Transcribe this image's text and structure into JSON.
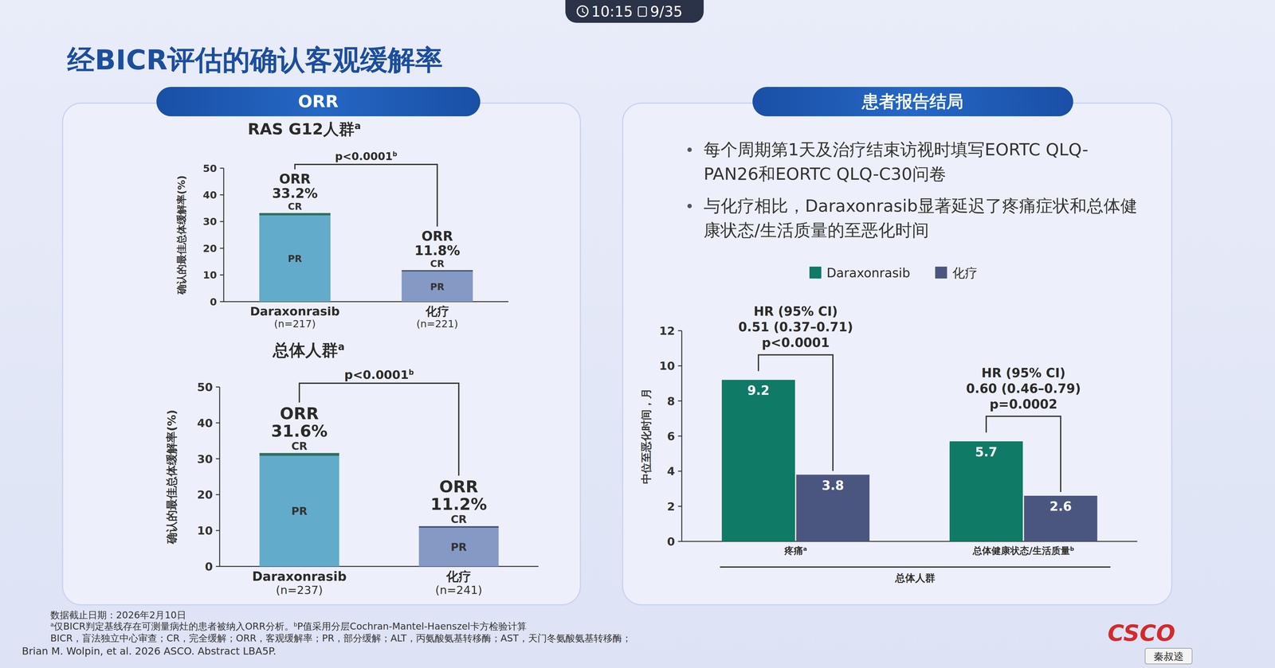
{
  "title": "经BICR评估的确认客观缓解率",
  "timer": {
    "time": "10:15",
    "page": "9/35"
  },
  "left_panel": {
    "header": "ORR"
  },
  "right_panel": {
    "header": "患者报告结局",
    "bullets": [
      "每个周期第1天及治疗结束访视时填写EORTC QLQ-PAN26和EORTC QLQ-C30问卷",
      "与化疗相比，Daraxonrasib显著延迟了疼痛症状和总体健康状态/生活质量的至恶化时间"
    ]
  },
  "footnotes": {
    "cutoff": "数据截止日期：2026年2月10日",
    "notes": [
      {
        "mark": "a",
        "text": "仅BICR判定基线存在可测量病灶的患者被纳入ORR分析。"
      },
      {
        "mark": "b",
        "text": "P值采用分层Cochran-Mantel-Haenszel卡方检验计算"
      }
    ],
    "abbreviations": "BICR，盲法独立中心审查；CR，完全缓解；ORR，客观缓解率；PR，部分缓解；ALT，丙氨酸氨基转移酶；AST，天门冬氨酸氨基转移酶；",
    "reference": "Brian M. Wolpin, et al. 2026 ASCO. Abstract LBA5P."
  },
  "logo": "CSCO",
  "speaker": "秦叔逵",
  "chart_data": [
    {
      "type": "bar",
      "stacked": true,
      "title": "RAS G12人群",
      "title_note": "a",
      "y_label": "确认的最佳总体缓解率(%)",
      "categories": [
        "Daraxonrasib",
        "化疗"
      ],
      "category_sublabels": [
        "(n=217)",
        "(n=221)"
      ],
      "series": [
        {
          "name": "PR",
          "colors": [
            "#63abcb",
            "#8499c4"
          ],
          "values": [
            32.3,
            11.3
          ]
        },
        {
          "name": "CR",
          "colors": [
            "#2f6f63",
            "#3e4c73"
          ],
          "values": [
            0.9,
            0.5
          ]
        }
      ],
      "total_name": "ORR",
      "totals": [
        33.2,
        11.8
      ],
      "total_labels": [
        "33.2%",
        "11.8%"
      ],
      "p_value": "p<0.0001",
      "p_note": "b",
      "ylim": [
        0,
        50
      ],
      "yticks": [
        0,
        10,
        20,
        30,
        40,
        50
      ],
      "grid": false
    },
    {
      "type": "bar",
      "stacked": true,
      "title": "总体人群",
      "title_note": "a",
      "y_label": "确认的最佳总体缓解率(%)",
      "categories": [
        "Daraxonrasib",
        "化疗"
      ],
      "category_sublabels": [
        "(n=237)",
        "(n=241)"
      ],
      "series": [
        {
          "name": "PR",
          "colors": [
            "#63abcb",
            "#8499c4"
          ],
          "values": [
            30.8,
            10.8
          ]
        },
        {
          "name": "CR",
          "colors": [
            "#2f6f63",
            "#3e4c73"
          ],
          "values": [
            0.8,
            0.4
          ]
        }
      ],
      "total_name": "ORR",
      "totals": [
        31.6,
        11.2
      ],
      "total_labels": [
        "31.6%",
        "11.2%"
      ],
      "p_value": "p<0.0001",
      "p_note": "b",
      "ylim": [
        0,
        50
      ],
      "yticks": [
        0,
        10,
        20,
        30,
        40,
        50
      ],
      "grid": false
    },
    {
      "type": "bar",
      "stacked": false,
      "y_label": "中位至恶化时间，月",
      "categories": [
        "疼痛",
        "总体健康状态/生活质量"
      ],
      "category_notes": [
        "a",
        "b"
      ],
      "group_label": "总体人群",
      "series": [
        {
          "name": "Daraxonrasib",
          "color": "#0f7a66",
          "values": [
            9.2,
            5.7
          ]
        },
        {
          "name": "化疗",
          "color": "#4b5680",
          "values": [
            3.8,
            2.6
          ]
        }
      ],
      "hr_annotations": [
        [
          "HR (95% CI)",
          "0.51 (0.37–0.71)",
          "p<0.0001"
        ],
        [
          "HR (95% CI)",
          "0.60 (0.46–0.79)",
          "p=0.0002"
        ]
      ],
      "data_labels": true,
      "legend": "top",
      "ylim": [
        0,
        12
      ],
      "yticks": [
        0,
        2,
        4,
        6,
        8,
        10,
        12
      ],
      "grid": false
    }
  ]
}
